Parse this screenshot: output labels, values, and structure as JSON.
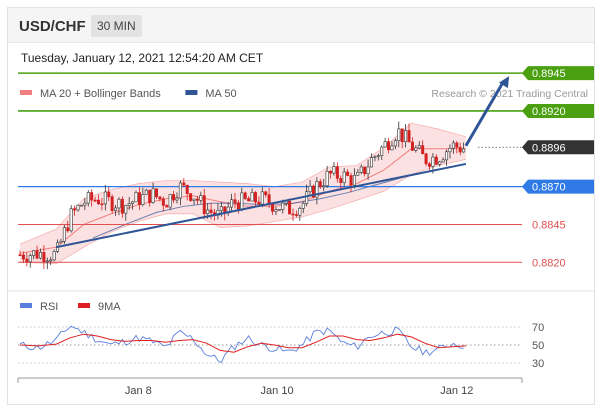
{
  "header": {
    "symbol": "USD/CHF",
    "interval": "30 MIN"
  },
  "timestamp": "Tuesday, January 12, 2021 12:54:20 AM CET",
  "colors": {
    "bollinger": "#f08080",
    "ma50": "#2f5597",
    "green_level": "#4aa010",
    "blue_level": "#2f7ae5",
    "red_level": "#e05050",
    "current": "#333333",
    "rsi": "#5b7fdc",
    "rsi_ma": "#e02020",
    "candle_up": "#333333",
    "candle_down": "#d32020"
  },
  "chart_data": [
    {
      "type": "line",
      "title": "",
      "legend": [
        {
          "label": "MA 20 + Bollinger Bands",
          "color": "#f08080"
        },
        {
          "label": "MA 50",
          "color": "#2f5597"
        }
      ],
      "credit": "Research © 2021 Trading Central",
      "ylim": [
        0.8805,
        0.8955
      ],
      "xlim": [
        0,
        100
      ],
      "x_ticks": [
        {
          "x": 26,
          "label": "Jan 8"
        },
        {
          "x": 56.5,
          "label": "Jan 10"
        },
        {
          "x": 96,
          "label": "Jan 12"
        }
      ],
      "levels": [
        {
          "value": 0.8945,
          "label": "0.8945",
          "style": "resistance"
        },
        {
          "value": 0.892,
          "label": "0.8920",
          "style": "resistance"
        },
        {
          "value": 0.8896,
          "label": "0.8896",
          "style": "current"
        },
        {
          "value": 0.887,
          "label": "0.8870",
          "style": "pivot"
        },
        {
          "value": 0.8845,
          "label": "0.8845",
          "style": "support"
        },
        {
          "value": 0.882,
          "label": "0.8820",
          "style": "support"
        }
      ],
      "trendline": {
        "x": [
          8,
          98
        ],
        "y": [
          0.883,
          0.8885
        ]
      },
      "forecast_arrow": {
        "x": [
          98,
          107.5
        ],
        "y": [
          0.8897,
          0.8943
        ]
      },
      "price_close": {
        "x": [
          0,
          4,
          8,
          11,
          14,
          17,
          20,
          23,
          26,
          29,
          32,
          35,
          38,
          41,
          44,
          47,
          50,
          53,
          56,
          59,
          62,
          65,
          68,
          71,
          74,
          77,
          80,
          83,
          86,
          89,
          92,
          95,
          98
        ],
        "y": [
          0.8825,
          0.8826,
          0.8825,
          0.885,
          0.886,
          0.8862,
          0.886,
          0.8858,
          0.8862,
          0.8865,
          0.886,
          0.887,
          0.8865,
          0.8855,
          0.885,
          0.886,
          0.886,
          0.8862,
          0.8858,
          0.8855,
          0.8858,
          0.887,
          0.8878,
          0.8877,
          0.8874,
          0.8887,
          0.8897,
          0.8907,
          0.8897,
          0.8888,
          0.889,
          0.8897,
          0.8895
        ]
      },
      "ma20": {
        "x": [
          0,
          8,
          14,
          20,
          26,
          32,
          38,
          44,
          50,
          56,
          62,
          68,
          74,
          80,
          86,
          92,
          98
        ],
        "y": [
          0.8826,
          0.883,
          0.8845,
          0.8852,
          0.8858,
          0.8862,
          0.8864,
          0.886,
          0.8857,
          0.8857,
          0.886,
          0.8867,
          0.8872,
          0.8881,
          0.8895,
          0.8895,
          0.8895
        ]
      },
      "bb_upper": {
        "x": [
          0,
          8,
          14,
          20,
          26,
          32,
          38,
          44,
          50,
          56,
          62,
          68,
          74,
          80,
          86,
          92,
          98
        ],
        "y": [
          0.8832,
          0.8842,
          0.8862,
          0.8868,
          0.8872,
          0.8874,
          0.8874,
          0.8873,
          0.8872,
          0.887,
          0.8873,
          0.8883,
          0.8884,
          0.8896,
          0.8912,
          0.8908,
          0.8903
        ]
      },
      "bb_lower": {
        "x": [
          0,
          8,
          14,
          20,
          26,
          32,
          38,
          44,
          50,
          56,
          62,
          68,
          74,
          80,
          86,
          92,
          98
        ],
        "y": [
          0.882,
          0.8819,
          0.883,
          0.884,
          0.8847,
          0.8852,
          0.8852,
          0.8843,
          0.8844,
          0.8847,
          0.885,
          0.8855,
          0.8861,
          0.8867,
          0.8878,
          0.8884,
          0.8888
        ]
      },
      "ma50": {
        "x": [
          16,
          24,
          30,
          36,
          42,
          48,
          54,
          60,
          66,
          72,
          78,
          84,
          90,
          98
        ],
        "y": [
          0.8836,
          0.8846,
          0.8853,
          0.8857,
          0.8859,
          0.8859,
          0.8858,
          0.8859,
          0.8862,
          0.8866,
          0.8871,
          0.8876,
          0.888,
          0.8885
        ]
      }
    },
    {
      "type": "line",
      "title": "",
      "legend": [
        {
          "label": "RSI",
          "color": "#5b7fdc"
        },
        {
          "label": "9MA",
          "color": "#e02020"
        }
      ],
      "ylim": [
        20,
        80
      ],
      "y_ticks": [
        30,
        50,
        70
      ],
      "x_ticks": [
        {
          "x": 26,
          "label": "Jan 8"
        },
        {
          "x": 56.5,
          "label": "Jan 10"
        },
        {
          "x": 96,
          "label": "Jan 12"
        }
      ],
      "rsi": {
        "x": [
          0,
          4,
          8,
          11,
          14,
          17,
          20,
          23,
          26,
          29,
          32,
          35,
          38,
          41,
          44,
          47,
          50,
          53,
          56,
          59,
          62,
          65,
          68,
          71,
          74,
          77,
          80,
          83,
          86,
          89,
          92,
          95,
          98
        ],
        "y": [
          50,
          47,
          55,
          72,
          64,
          56,
          50,
          54,
          58,
          54,
          47,
          64,
          57,
          40,
          32,
          48,
          58,
          50,
          46,
          42,
          50,
          64,
          66,
          52,
          48,
          60,
          64,
          66,
          48,
          42,
          45,
          52,
          49
        ]
      },
      "rsi_ma": {
        "x": [
          0,
          4,
          8,
          11,
          14,
          17,
          20,
          23,
          26,
          29,
          32,
          35,
          38,
          41,
          44,
          47,
          50,
          53,
          56,
          59,
          62,
          65,
          68,
          71,
          74,
          77,
          80,
          83,
          86,
          89,
          92,
          95,
          98
        ],
        "y": [
          50,
          49,
          51,
          58,
          62,
          60,
          56,
          54,
          55,
          55,
          53,
          55,
          56,
          52,
          44,
          42,
          48,
          52,
          50,
          47,
          47,
          53,
          60,
          60,
          56,
          55,
          58,
          62,
          59,
          52,
          47,
          48,
          49
        ]
      }
    }
  ]
}
